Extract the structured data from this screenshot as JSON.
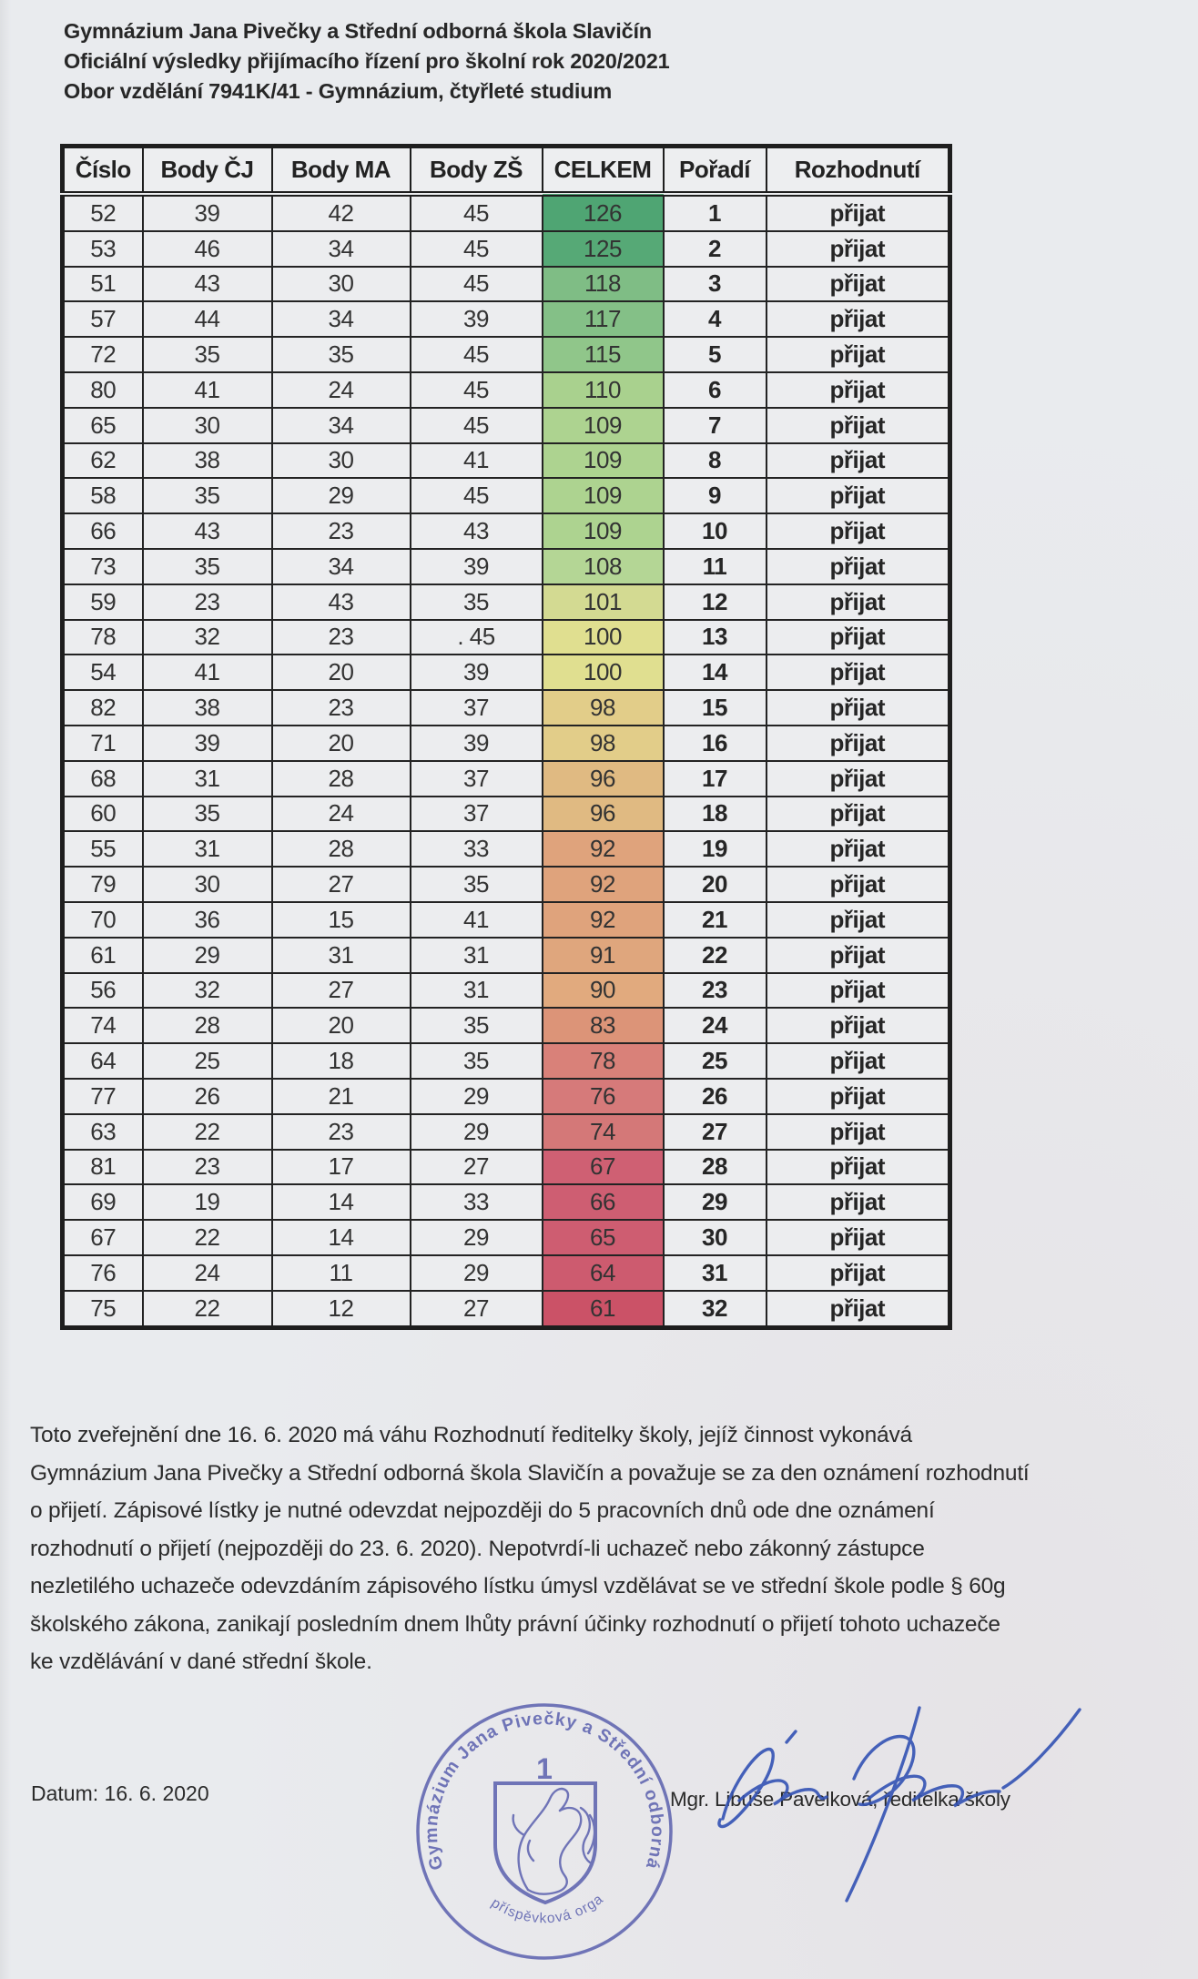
{
  "page": {
    "kind": "scanned official document",
    "paper_color": "#e9ebee",
    "ink_color": "#2e2e2e",
    "stamp_color": "#5b60ae",
    "signature_ink_color": "#3352b4"
  },
  "header": {
    "lines": [
      "Gymnázium Jana Pivečky a Střední odborná škola Slavičín",
      "Oficiální výsledky přijímacího řízení pro školní rok 2020/2021",
      "Obor vzdělání 7941K/41 - Gymnázium, čtyřleté studium"
    ]
  },
  "table": {
    "columns": [
      "Číslo",
      "Body ČJ",
      "Body MA",
      "Body ZŠ",
      "CELKEM",
      "Pořadí",
      "Rozhodnutí"
    ],
    "celkem_column_index": 4,
    "bold_column_indexes": [
      5,
      6
    ],
    "rows": [
      {
        "cells": [
          "52",
          "39",
          "42",
          "45",
          "126",
          "1",
          "přijat"
        ],
        "celkem_color": "#4FA573"
      },
      {
        "cells": [
          "53",
          "46",
          "34",
          "45",
          "125",
          "2",
          "přijat"
        ],
        "celkem_color": "#56A976"
      },
      {
        "cells": [
          "51",
          "43",
          "30",
          "45",
          "118",
          "3",
          "přijat"
        ],
        "celkem_color": "#7FBD85"
      },
      {
        "cells": [
          "57",
          "44",
          "34",
          "39",
          "117",
          "4",
          "přijat"
        ],
        "celkem_color": "#84C087"
      },
      {
        "cells": [
          "72",
          "35",
          "35",
          "45",
          "115",
          "5",
          "přijat"
        ],
        "celkem_color": "#90C68A"
      },
      {
        "cells": [
          "80",
          "41",
          "24",
          "45",
          "110",
          "6",
          "přijat"
        ],
        "celkem_color": "#A9D18E"
      },
      {
        "cells": [
          "65",
          "30",
          "34",
          "45",
          "109",
          "7",
          "přijat"
        ],
        "celkem_color": "#ADD390"
      },
      {
        "cells": [
          "62",
          "38",
          "30",
          "41",
          "109",
          "8",
          "přijat"
        ],
        "celkem_color": "#ADD390"
      },
      {
        "cells": [
          "58",
          "35",
          "29",
          "45",
          "109",
          "9",
          "přijat"
        ],
        "celkem_color": "#ADD390"
      },
      {
        "cells": [
          "66",
          "43",
          "23",
          "43",
          "109",
          "10",
          "přijat"
        ],
        "celkem_color": "#ADD390"
      },
      {
        "cells": [
          "73",
          "35",
          "34",
          "39",
          "108",
          "11",
          "přijat"
        ],
        "celkem_color": "#B4D695"
      },
      {
        "cells": [
          "59",
          "23",
          "43",
          "35",
          "101",
          "12",
          "přijat"
        ],
        "celkem_color": "#D3DA92"
      },
      {
        "cells": [
          "78",
          "32",
          "23",
          ".  45",
          "100",
          "13",
          "přijat"
        ],
        "celkem_color": "#E0DF90"
      },
      {
        "cells": [
          "54",
          "41",
          "20",
          "39",
          "100",
          "14",
          "přijat"
        ],
        "celkem_color": "#E0DF90"
      },
      {
        "cells": [
          "82",
          "38",
          "23",
          "37",
          "98",
          "15",
          "přijat"
        ],
        "celkem_color": "#E2CD89"
      },
      {
        "cells": [
          "71",
          "39",
          "20",
          "39",
          "98",
          "16",
          "přijat"
        ],
        "celkem_color": "#E2CD89"
      },
      {
        "cells": [
          "68",
          "31",
          "28",
          "37",
          "96",
          "17",
          "přijat"
        ],
        "celkem_color": "#E0BA82"
      },
      {
        "cells": [
          "60",
          "35",
          "24",
          "37",
          "96",
          "18",
          "přijat"
        ],
        "celkem_color": "#E0BA82"
      },
      {
        "cells": [
          "55",
          "31",
          "28",
          "33",
          "92",
          "19",
          "přijat"
        ],
        "celkem_color": "#DFA37C"
      },
      {
        "cells": [
          "79",
          "30",
          "27",
          "35",
          "92",
          "20",
          "přijat"
        ],
        "celkem_color": "#DFA37C"
      },
      {
        "cells": [
          "70",
          "36",
          "15",
          "41",
          "92",
          "21",
          "přijat"
        ],
        "celkem_color": "#DFA37C"
      },
      {
        "cells": [
          "61",
          "29",
          "31",
          "31",
          "91",
          "22",
          "přijat"
        ],
        "celkem_color": "#DFA67D"
      },
      {
        "cells": [
          "56",
          "32",
          "27",
          "31",
          "90",
          "23",
          "přijat"
        ],
        "celkem_color": "#E1AA7E"
      },
      {
        "cells": [
          "74",
          "28",
          "20",
          "35",
          "83",
          "24",
          "přijat"
        ],
        "celkem_color": "#DC9478"
      },
      {
        "cells": [
          "64",
          "25",
          "18",
          "35",
          "78",
          "25",
          "přijat"
        ],
        "celkem_color": "#D98179"
      },
      {
        "cells": [
          "77",
          "26",
          "21",
          "29",
          "76",
          "26",
          "přijat"
        ],
        "celkem_color": "#D67A7A"
      },
      {
        "cells": [
          "63",
          "22",
          "23",
          "29",
          "74",
          "27",
          "přijat"
        ],
        "celkem_color": "#D47878"
      },
      {
        "cells": [
          "81",
          "23",
          "17",
          "27",
          "67",
          "28",
          "přijat"
        ],
        "celkem_color": "#CF6073"
      },
      {
        "cells": [
          "69",
          "19",
          "14",
          "33",
          "66",
          "29",
          "přijat"
        ],
        "celkem_color": "#CE5E72"
      },
      {
        "cells": [
          "67",
          "22",
          "14",
          "29",
          "65",
          "30",
          "přijat"
        ],
        "celkem_color": "#CE5D71"
      },
      {
        "cells": [
          "76",
          "24",
          "11",
          "29",
          "64",
          "31",
          "přijat"
        ],
        "celkem_color": "#CD5B6F"
      },
      {
        "cells": [
          "75",
          "22",
          "12",
          "27",
          "61",
          "32",
          "přijat"
        ],
        "celkem_color": "#CB5267"
      }
    ]
  },
  "footer": {
    "paragraph_lines": [
      "Toto zveřejnění dne 16. 6. 2020 má váhu Rozhodnutí ředitelky školy, jejíž činnost vykonává",
      "Gymnázium Jana Pivečky a Střední odborná škola Slavičín a považuje se za den oznámení rozhodnutí",
      "o přijetí. Zápisové lístky je nutné odevzdat nejpozději do 5 pracovních dnů ode dne oznámení",
      "rozhodnutí o přijetí (nejpozději do 23. 6. 2020). Nepotvrdí-li uchazeč nebo zákonný  zástupce",
      "nezletilého uchazeče odevzdáním zápisového lístku úmysl vzdělávat se ve střední škole podle § 60g",
      "školského zákona, zanikají posledním dnem lhůty právní účinky rozhodnutí o přijetí tohoto uchazeče",
      "ke vzdělávání v dané střední škole."
    ],
    "datum": "Datum: 16. 6. 2020",
    "signatory": "Mgr. Libuše Pavelková, ředitelka školy"
  },
  "stamp": {
    "ring_text": "Gymnázium Jana Pivečky a Střední odborná škola Slavičín",
    "bottom_text": "příspěvková organizace",
    "number": "1"
  }
}
